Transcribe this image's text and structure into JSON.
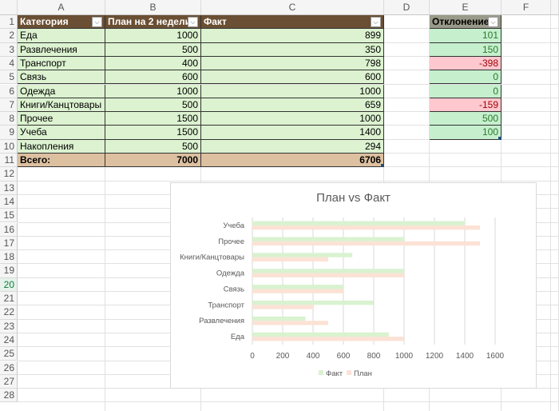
{
  "columns": [
    "A",
    "B",
    "C",
    "D",
    "E",
    "F"
  ],
  "rows": [
    "1",
    "2",
    "3",
    "4",
    "5",
    "6",
    "7",
    "8",
    "9",
    "10",
    "11",
    "12",
    "13",
    "14",
    "15",
    "16",
    "17",
    "18",
    "19",
    "20",
    "21",
    "22",
    "23",
    "24",
    "25",
    "26",
    "27",
    "28"
  ],
  "table": {
    "headers": [
      "Категория",
      "План на 2 недели",
      "Факт"
    ],
    "body": [
      [
        "Еда",
        "1000",
        "899"
      ],
      [
        "Развлечения",
        "500",
        "350"
      ],
      [
        "Транспорт",
        "400",
        "798"
      ],
      [
        "Связь",
        "600",
        "600"
      ],
      [
        "Одежда",
        "1000",
        "1000"
      ],
      [
        "Книги/Канцтовары",
        "500",
        "659"
      ],
      [
        "Прочее",
        "1500",
        "1000"
      ],
      [
        "Учеба",
        "1500",
        "1400"
      ],
      [
        "Накопления",
        "500",
        "294"
      ]
    ],
    "total": [
      "Всего:",
      "7000",
      "6706"
    ]
  },
  "deviation": {
    "header": "Отклонение",
    "values": [
      "101",
      "150",
      "-398",
      "0",
      "0",
      "-159",
      "500",
      "100"
    ]
  },
  "colors": {
    "header_bg": "#6b4f34",
    "row_bg": "#dcf2d0",
    "total_bg": "#dcc0a0",
    "positive_bg": "#c6efce",
    "negative_bg": "#ffc7ce",
    "fact_series": "#d9f2d0",
    "plan_series": "#fbe2d5"
  },
  "chart_data": {
    "type": "bar",
    "orientation": "horizontal",
    "title": "План vs Факт",
    "categories": [
      "Еда",
      "Развлечения",
      "Транспорт",
      "Связь",
      "Одежда",
      "Книги/Канцтовары",
      "Прочее",
      "Учеба"
    ],
    "series": [
      {
        "name": "Факт",
        "values": [
          899,
          350,
          798,
          600,
          1000,
          659,
          1000,
          1400
        ]
      },
      {
        "name": "План",
        "values": [
          1000,
          500,
          400,
          600,
          1000,
          500,
          1500,
          1500
        ]
      }
    ],
    "xlim": [
      0,
      1600
    ],
    "xticks": [
      "0",
      "200",
      "400",
      "600",
      "800",
      "1000",
      "1200",
      "1400",
      "1600"
    ],
    "grid": true,
    "legend": "bottom"
  }
}
